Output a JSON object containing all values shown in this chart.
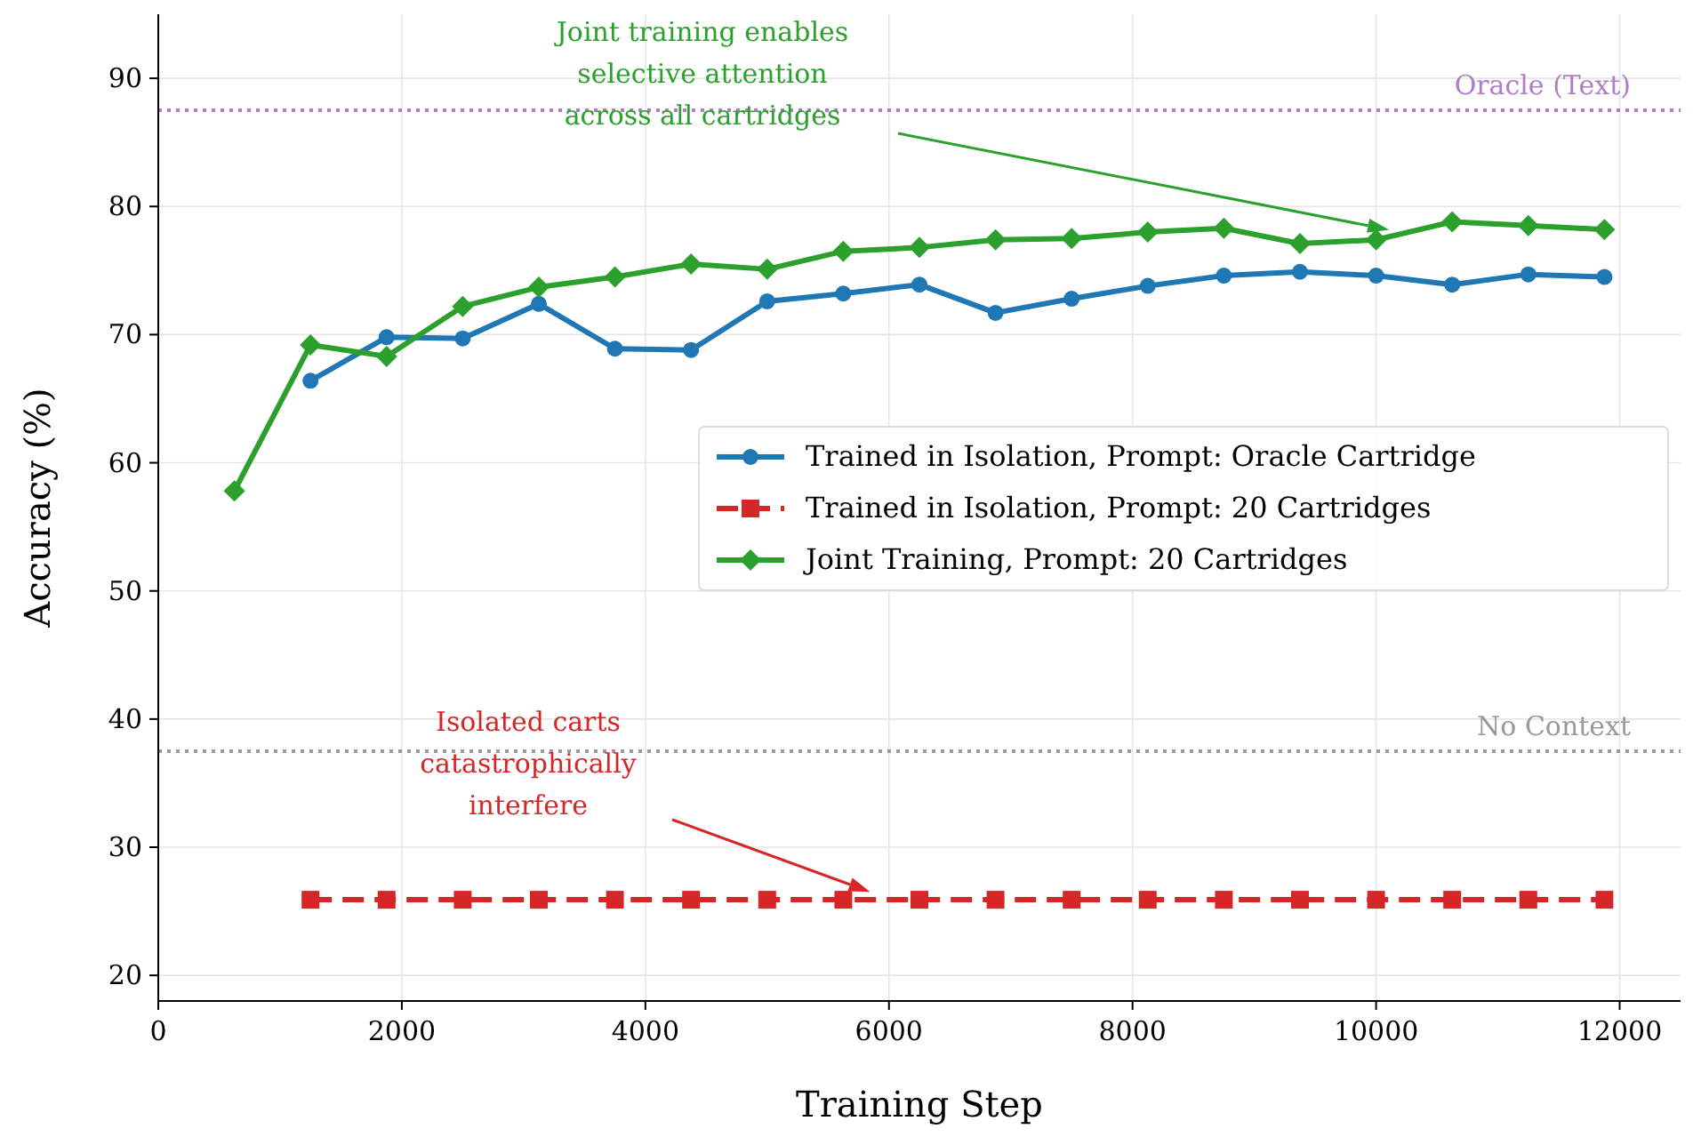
{
  "chart_data": {
    "type": "line",
    "xlabel": "Training Step",
    "ylabel": "Accuracy (%)",
    "xlim": [
      0,
      12500
    ],
    "xticks": [
      0,
      2000,
      4000,
      6000,
      8000,
      10000,
      12000
    ],
    "ylim": [
      18,
      95
    ],
    "yticks": [
      20,
      30,
      40,
      50,
      60,
      70,
      80,
      90
    ],
    "grid": true,
    "legend": "center right",
    "series": [
      {
        "name": "Trained in Isolation, Prompt: Oracle Cartridge",
        "color": "#1f77b4",
        "marker": "circle",
        "line_style": "solid",
        "x": [
          1250,
          1875,
          2500,
          3125,
          3750,
          4375,
          5000,
          5625,
          6250,
          6875,
          7500,
          8125,
          8750,
          9375,
          10000,
          10625,
          11250,
          11875
        ],
        "values": [
          66.4,
          69.8,
          69.7,
          72.4,
          68.9,
          68.8,
          72.6,
          73.2,
          73.9,
          71.7,
          72.8,
          73.8,
          74.6,
          74.9,
          74.6,
          73.9,
          74.7,
          74.5
        ]
      },
      {
        "name": "Trained in Isolation, Prompt: 20 Cartridges",
        "color": "#d62728",
        "marker": "square",
        "line_style": "dashed",
        "x": [
          1250,
          1875,
          2500,
          3125,
          3750,
          4375,
          5000,
          5625,
          6250,
          6875,
          7500,
          8125,
          8750,
          9375,
          10000,
          10625,
          11250,
          11875
        ],
        "values": [
          25.9,
          25.9,
          25.9,
          25.9,
          25.9,
          25.9,
          25.9,
          25.9,
          25.9,
          25.9,
          25.9,
          25.9,
          25.9,
          25.9,
          25.9,
          25.9,
          25.9,
          25.9
        ]
      },
      {
        "name": "Joint Training, Prompt: 20 Cartridges",
        "color": "#2ca02c",
        "marker": "diamond",
        "line_style": "solid",
        "x": [
          625,
          1250,
          1875,
          2500,
          3125,
          3750,
          4375,
          5000,
          5625,
          6250,
          6875,
          7500,
          8125,
          8750,
          9375,
          10000,
          10625,
          11250,
          11875
        ],
        "values": [
          57.8,
          69.2,
          68.3,
          72.2,
          73.7,
          74.5,
          75.5,
          75.1,
          76.5,
          76.8,
          77.4,
          77.5,
          78.0,
          78.3,
          77.1,
          77.4,
          78.8,
          78.5,
          78.2
        ]
      }
    ],
    "ref_lines": [
      {
        "axis": "y",
        "value": 87.5,
        "label": "Oracle (Text)",
        "color": "#b07cc6",
        "line_style": "dotted"
      },
      {
        "axis": "y",
        "value": 37.5,
        "label": "No Context",
        "color": "#999999",
        "line_style": "dotted"
      }
    ],
    "annotations": [
      "Joint training enables\nselective attention\nacross all cartridges",
      "Isolated carts\ncatastrophically\ninterfere"
    ]
  }
}
